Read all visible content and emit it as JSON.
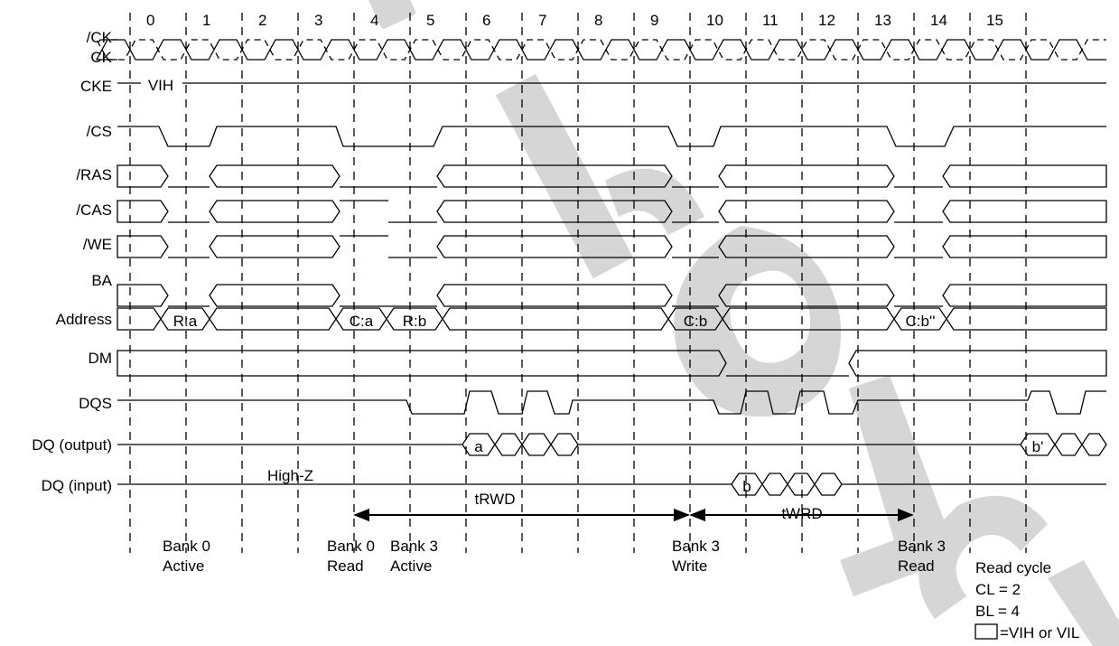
{
  "signals": [
    "/CK",
    "CK",
    "CKE",
    "/CS",
    "/RAS",
    "/CAS",
    "/WE",
    "BA",
    "Address",
    "DM",
    "DQS",
    "DQ (output)",
    "DQ (input)"
  ],
  "clock_numbers": [
    "0",
    "1",
    "2",
    "3",
    "4",
    "5",
    "6",
    "7",
    "8",
    "9",
    "10",
    "11",
    "12",
    "13",
    "14",
    "15"
  ],
  "cke_level": "VIH",
  "highz": "High-Z",
  "address_values": [
    "R:a",
    "C:a",
    "R:b",
    "C:b",
    "C:b''"
  ],
  "dq_output_values": [
    "a",
    "b'"
  ],
  "dq_input_values": [
    "b"
  ],
  "timing": {
    "trwd": "tRWD",
    "twrd": "tWRD"
  },
  "commands": [
    {
      "line1": "Bank 0",
      "line2": "Active"
    },
    {
      "line1": "Bank 0",
      "line2": "Read"
    },
    {
      "line1": "Bank 3",
      "line2": "Active"
    },
    {
      "line1": "Bank 3",
      "line2": "Write"
    },
    {
      "line1": "Bank 3",
      "line2": "Read"
    }
  ],
  "notes": {
    "read_cycle": "Read cycle",
    "cl": "CL = 2",
    "bl": "BL = 4",
    "legend": "=VIH or VIL"
  },
  "colors": {
    "line": "#000000",
    "watermark": "#d6d6d6"
  }
}
